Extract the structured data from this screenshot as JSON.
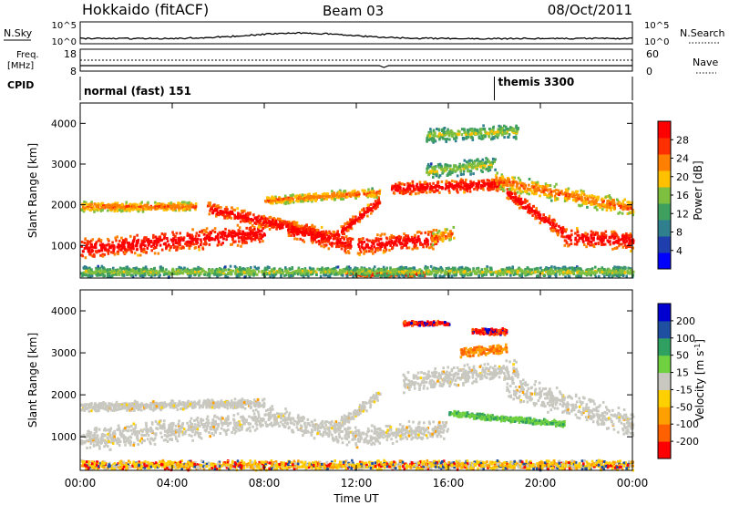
{
  "header": {
    "station": "Hokkaido (fitACF)",
    "beam": "Beam 03",
    "date": "08/Oct/2011"
  },
  "status_panels": {
    "nsky_label": "N.Sky",
    "nsky_ticks": [
      "10^5",
      "10^0"
    ],
    "nsearch_label": "N.Search",
    "nsearch_ticks": [
      "10^5",
      "10^0"
    ],
    "freq_label_1": "Freq.",
    "freq_label_2": "[MHz]",
    "freq_ticks": [
      "18",
      "8"
    ],
    "nave_label": "Nave",
    "nave_ticks": [
      "60",
      "0"
    ],
    "cpid_label": "CPID",
    "cpid_modes": [
      {
        "label": "normal (fast) 151",
        "start_ut": 0
      },
      {
        "label": "themis 3300",
        "start_ut": 18
      }
    ]
  },
  "colors": {
    "power_scale": [
      "#0000ff",
      "#1f3fae",
      "#2f7f8f",
      "#3f9f5f",
      "#7fbf3f",
      "#ffc000",
      "#ff8000",
      "#ff3000",
      "#ff0000"
    ],
    "velocity_scale": [
      "#ff0000",
      "#ff6000",
      "#ff9f00",
      "#ffd000",
      "#c8c8c0",
      "#6fd040",
      "#2fa060",
      "#1f4fa0",
      "#0000d0"
    ],
    "ground_scatter": "#c8c8c0"
  },
  "chart_data": [
    {
      "type": "heatmap",
      "name": "power",
      "ylabel": "Slant Range [km]",
      "xlabel": "",
      "xlim": [
        0,
        24
      ],
      "ylim": [
        200,
        4500
      ],
      "yticks": [
        "1000",
        "2000",
        "3000",
        "4000"
      ],
      "colorbar_label": "Power [dB]",
      "colorbar_ticks": [
        "4",
        "8",
        "12",
        "16",
        "20",
        "24",
        "28"
      ],
      "colorbar_range": [
        0,
        32
      ],
      "bands": [
        {
          "start_ut": 0.0,
          "end_ut": 8.0,
          "center_km_start": 900,
          "center_km_end": 1300,
          "half_width_km": 280,
          "level": "high"
        },
        {
          "start_ut": 5.5,
          "end_ut": 11.0,
          "center_km_start": 1900,
          "center_km_end": 1200,
          "half_width_km": 180,
          "level": "high"
        },
        {
          "start_ut": 9.0,
          "end_ut": 11.8,
          "center_km_start": 1400,
          "center_km_end": 1000,
          "half_width_km": 250,
          "level": "high"
        },
        {
          "start_ut": 11.0,
          "end_ut": 13.0,
          "center_km_start": 1200,
          "center_km_end": 2100,
          "half_width_km": 150,
          "level": "high"
        },
        {
          "start_ut": 12.0,
          "end_ut": 15.5,
          "center_km_start": 1000,
          "center_km_end": 1150,
          "half_width_km": 250,
          "level": "high"
        },
        {
          "start_ut": 15.2,
          "end_ut": 16.2,
          "center_km_start": 1150,
          "center_km_end": 1300,
          "half_width_km": 180,
          "level": "mid"
        },
        {
          "start_ut": 13.5,
          "end_ut": 18.5,
          "center_km_start": 2400,
          "center_km_end": 2500,
          "half_width_km": 180,
          "level": "high"
        },
        {
          "start_ut": 18.5,
          "end_ut": 21.0,
          "center_km_start": 2300,
          "center_km_end": 1300,
          "half_width_km": 180,
          "level": "high"
        },
        {
          "start_ut": 21.0,
          "end_ut": 24.0,
          "center_km_start": 1200,
          "center_km_end": 1100,
          "half_width_km": 250,
          "level": "high"
        },
        {
          "start_ut": 18.0,
          "end_ut": 24.0,
          "center_km_start": 2600,
          "center_km_end": 1900,
          "half_width_km": 220,
          "level": "mid"
        },
        {
          "start_ut": 0.0,
          "end_ut": 5.0,
          "center_km_start": 1950,
          "center_km_end": 1950,
          "half_width_km": 130,
          "level": "mid"
        },
        {
          "start_ut": 8.0,
          "end_ut": 13.0,
          "center_km_start": 2100,
          "center_km_end": 2300,
          "half_width_km": 120,
          "level": "mid"
        },
        {
          "start_ut": 15.0,
          "end_ut": 18.0,
          "center_km_start": 2800,
          "center_km_end": 3000,
          "half_width_km": 200,
          "level": "low"
        },
        {
          "start_ut": 15.0,
          "end_ut": 19.0,
          "center_km_start": 3700,
          "center_km_end": 3800,
          "half_width_km": 200,
          "level": "low"
        },
        {
          "start_ut": 11.5,
          "end_ut": 15.0,
          "center_km_start": 300,
          "center_km_end": 300,
          "half_width_km": 70,
          "level": "high"
        },
        {
          "start_ut": 0.0,
          "end_ut": 24.0,
          "center_km_start": 350,
          "center_km_end": 350,
          "half_width_km": 140,
          "level": "low"
        }
      ]
    },
    {
      "type": "heatmap",
      "name": "velocity",
      "ylabel": "Slant Range [km]",
      "xlabel": "Time UT",
      "xlim": [
        0,
        24
      ],
      "ylim": [
        200,
        4500
      ],
      "xticks": [
        "00:00",
        "04:00",
        "08:00",
        "12:00",
        "16:00",
        "20:00",
        "00:00"
      ],
      "yticks": [
        "1000",
        "2000",
        "3000",
        "4000"
      ],
      "colorbar_label": "Velocity [m s-1]",
      "colorbar_ticks": [
        "-200",
        "-100",
        "-50",
        "-15",
        "15",
        "50",
        "100",
        "200"
      ],
      "colorbar_range": [
        -250,
        250
      ],
      "bands": [
        {
          "start_ut": 0.0,
          "end_ut": 8.0,
          "center_km_start": 900,
          "center_km_end": 1400,
          "half_width_km": 300,
          "level": "ground"
        },
        {
          "start_ut": 0.0,
          "end_ut": 8.0,
          "center_km_start": 1700,
          "center_km_end": 1800,
          "half_width_km": 120,
          "level": "ground"
        },
        {
          "start_ut": 8.0,
          "end_ut": 12.0,
          "center_km_start": 1500,
          "center_km_end": 1000,
          "half_width_km": 280,
          "level": "ground"
        },
        {
          "start_ut": 11.0,
          "end_ut": 13.0,
          "center_km_start": 1200,
          "center_km_end": 2000,
          "half_width_km": 160,
          "level": "ground"
        },
        {
          "start_ut": 12.0,
          "end_ut": 16.0,
          "center_km_start": 1000,
          "center_km_end": 1200,
          "half_width_km": 260,
          "level": "ground"
        },
        {
          "start_ut": 14.0,
          "end_ut": 19.0,
          "center_km_start": 2300,
          "center_km_end": 2600,
          "half_width_km": 260,
          "level": "ground"
        },
        {
          "start_ut": 18.5,
          "end_ut": 24.0,
          "center_km_start": 2200,
          "center_km_end": 1300,
          "half_width_km": 350,
          "level": "ground"
        },
        {
          "start_ut": 16.0,
          "end_ut": 21.0,
          "center_km_start": 1550,
          "center_km_end": 1300,
          "half_width_km": 80,
          "level": "pos_low"
        },
        {
          "start_ut": 16.5,
          "end_ut": 18.5,
          "center_km_start": 3000,
          "center_km_end": 3100,
          "half_width_km": 120,
          "level": "neg_mid"
        },
        {
          "start_ut": 17.0,
          "end_ut": 18.5,
          "center_km_start": 3500,
          "center_km_end": 3500,
          "half_width_km": 80,
          "level": "neg_high"
        },
        {
          "start_ut": 14.0,
          "end_ut": 16.0,
          "center_km_start": 3700,
          "center_km_end": 3700,
          "half_width_km": 60,
          "level": "neg_high"
        },
        {
          "start_ut": 0.0,
          "end_ut": 24.0,
          "center_km_start": 320,
          "center_km_end": 320,
          "half_width_km": 120,
          "level": "neg_low"
        }
      ]
    }
  ]
}
